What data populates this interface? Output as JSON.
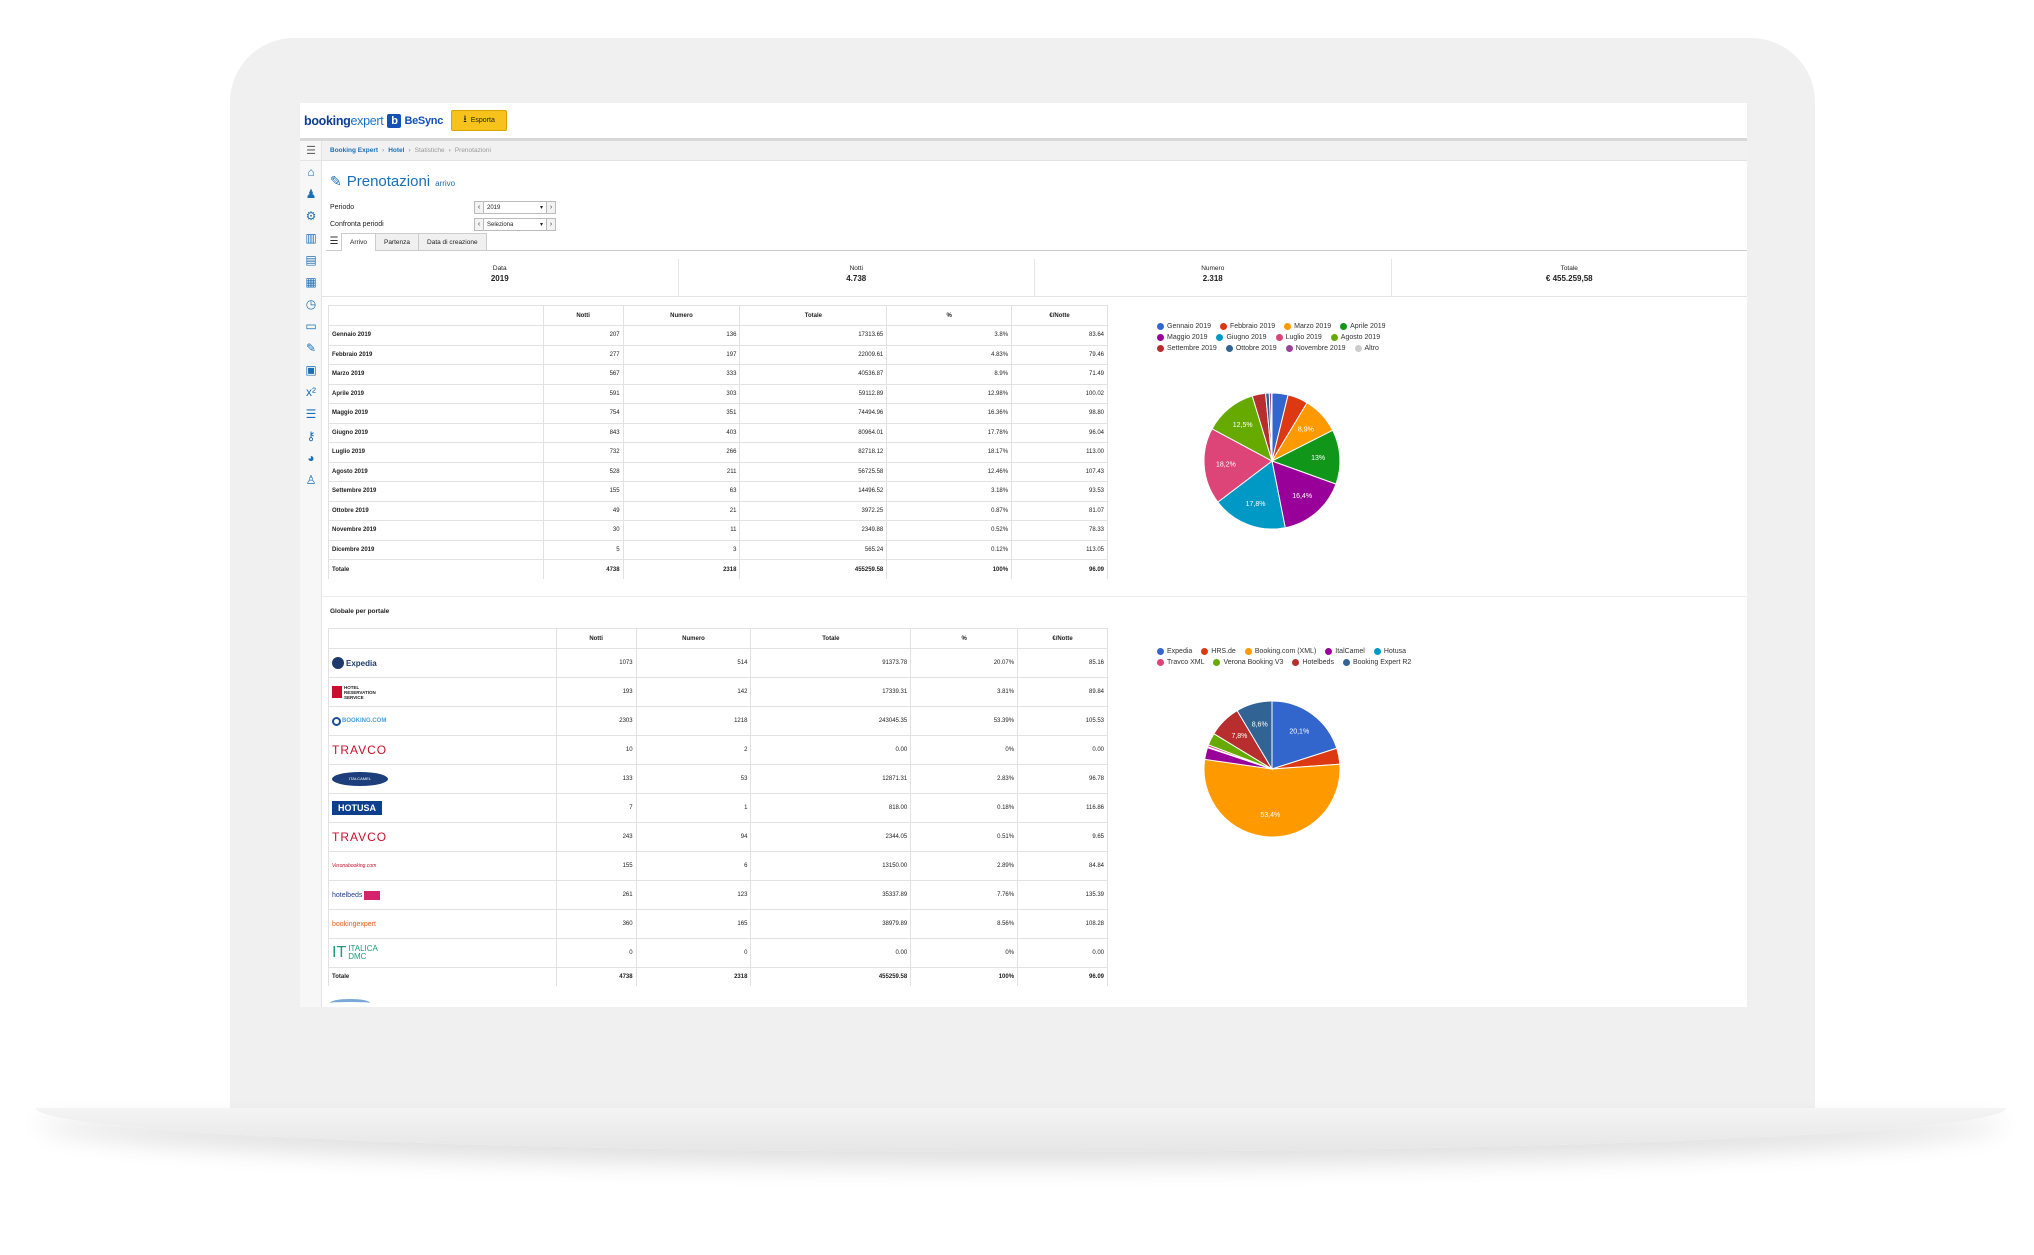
{
  "header": {
    "logo_part1": "booking",
    "logo_part2": "expert",
    "logo_mark": "b",
    "logo_part3": "BeSync",
    "export_label": "Esporta",
    "export_icon": "download-icon"
  },
  "sidebar": {
    "toggle_icon": "hamburger-icon",
    "items": [
      {
        "icon": "home-icon",
        "glyph": "⌂"
      },
      {
        "icon": "user-icon",
        "glyph": "♟"
      },
      {
        "icon": "settings-icon",
        "glyph": "⚙"
      },
      {
        "icon": "chart-icon",
        "glyph": "▥"
      },
      {
        "icon": "list-icon",
        "glyph": "▤"
      },
      {
        "icon": "building-icon",
        "glyph": "▦"
      },
      {
        "icon": "clock-icon",
        "glyph": "◷"
      },
      {
        "icon": "monitor-icon",
        "glyph": "▭"
      },
      {
        "icon": "wrench-icon",
        "glyph": "✎"
      },
      {
        "icon": "calculator-icon",
        "glyph": "▣"
      },
      {
        "icon": "superscript-icon",
        "glyph": "x²"
      },
      {
        "icon": "checklist-icon",
        "glyph": "☰"
      },
      {
        "icon": "key-icon",
        "glyph": "⚷"
      },
      {
        "icon": "pie-chart-icon",
        "glyph": "◕"
      },
      {
        "icon": "sitemap-icon",
        "glyph": "♙"
      }
    ]
  },
  "breadcrumb": {
    "items": [
      "Booking Expert",
      "Hotel",
      "Statistiche",
      "Prenotazioni"
    ]
  },
  "page": {
    "title": "Prenotazioni",
    "subtitle": "arrivo",
    "title_icon": "pencil-icon"
  },
  "filters": {
    "period_label": "Periodo",
    "period_value": "2019",
    "compare_label": "Confronta periodi",
    "compare_value": "Seleziona",
    "prev_glyph": "‹",
    "next_glyph": "›",
    "caret_glyph": "▾"
  },
  "tabs": {
    "menu_icon": "hamburger-icon",
    "items": [
      "Arrivo",
      "Partenza",
      "Data di creazione"
    ]
  },
  "summary": [
    {
      "label": "Data",
      "value": "2019"
    },
    {
      "label": "Notti",
      "value": "4.738"
    },
    {
      "label": "Numero",
      "value": "2.318"
    },
    {
      "label": "Totale",
      "value": "€ 455.259,58"
    }
  ],
  "monthly_table": {
    "columns": [
      "",
      "Notti",
      "Numero",
      "Totale",
      "%",
      "€/Notte"
    ],
    "rows": [
      [
        "Gennaio 2019",
        "207",
        "136",
        "17313.65",
        "3.8%",
        "83.64"
      ],
      [
        "Febbraio 2019",
        "277",
        "197",
        "22009.61",
        "4.83%",
        "79.46"
      ],
      [
        "Marzo 2019",
        "567",
        "333",
        "40536.87",
        "8.9%",
        "71.49"
      ],
      [
        "Aprile 2019",
        "591",
        "303",
        "59112.89",
        "12.98%",
        "100.02"
      ],
      [
        "Maggio 2019",
        "754",
        "351",
        "74494.96",
        "16.36%",
        "98.80"
      ],
      [
        "Giugno 2019",
        "843",
        "403",
        "80964.01",
        "17.78%",
        "96.04"
      ],
      [
        "Luglio 2019",
        "732",
        "266",
        "82718.12",
        "18.17%",
        "113.00"
      ],
      [
        "Agosto 2019",
        "528",
        "211",
        "56725.58",
        "12.46%",
        "107.43"
      ],
      [
        "Settembre 2019",
        "155",
        "63",
        "14496.52",
        "3.18%",
        "93.53"
      ],
      [
        "Ottobre 2019",
        "49",
        "21",
        "3972.25",
        "0.87%",
        "81.07"
      ],
      [
        "Novembre 2019",
        "30",
        "11",
        "2349.88",
        "0.52%",
        "78.33"
      ],
      [
        "Dicembre 2019",
        "5",
        "3",
        "565.24",
        "0.12%",
        "113.05"
      ],
      [
        "Totale",
        "4738",
        "2318",
        "455259.58",
        "100%",
        "96.09"
      ]
    ]
  },
  "portal_section_label": "Globale per portale",
  "portal_table": {
    "columns": [
      "",
      "Notti",
      "Numero",
      "Totale",
      "%",
      "€/Notte"
    ],
    "rows": [
      {
        "logo": "expedia",
        "logo_text": "Expedia",
        "cells": [
          "1073",
          "514",
          "91373.78",
          "20.07%",
          "85.16"
        ]
      },
      {
        "logo": "hrs",
        "logo_text": "HOTEL RESERVATION SERVICE",
        "cells": [
          "193",
          "142",
          "17339.31",
          "3.81%",
          "89.84"
        ]
      },
      {
        "logo": "booking",
        "logo_text": "BOOKING.COM",
        "cells": [
          "2303",
          "1218",
          "243045.35",
          "53.39%",
          "105.53"
        ]
      },
      {
        "logo": "travco",
        "logo_text": "TRAVCO",
        "cells": [
          "10",
          "2",
          "0.00",
          "0%",
          "0.00"
        ]
      },
      {
        "logo": "italcamel",
        "logo_text": "ITALCAMEL",
        "cells": [
          "133",
          "53",
          "12871.31",
          "2.83%",
          "96.78"
        ]
      },
      {
        "logo": "hotusa",
        "logo_text": "HOTUSA",
        "cells": [
          "7",
          "1",
          "818.00",
          "0.18%",
          "116.86"
        ]
      },
      {
        "logo": "travco",
        "logo_text": "TRAVCO",
        "cells": [
          "243",
          "94",
          "2344.05",
          "0.51%",
          "9.65"
        ]
      },
      {
        "logo": "verona",
        "logo_text": "Veronabooking.com",
        "cells": [
          "155",
          "6",
          "13150.00",
          "2.89%",
          "84.84"
        ]
      },
      {
        "logo": "hotelbeds",
        "logo_text": "hotelbeds",
        "cells": [
          "261",
          "123",
          "35337.89",
          "7.76%",
          "135.39"
        ]
      },
      {
        "logo": "bexpert",
        "logo_text": "bookingexpert",
        "cells": [
          "360",
          "165",
          "38979.89",
          "8.56%",
          "108.28"
        ]
      },
      {
        "logo": "italica",
        "logo_text": "ITALICA DMC",
        "cells": [
          "0",
          "0",
          "0.00",
          "0%",
          "0.00"
        ]
      }
    ],
    "total": [
      "Totale",
      "4738",
      "2318",
      "455259.58",
      "100%",
      "96.09"
    ]
  },
  "chart_data": [
    {
      "type": "pie",
      "legend_position": "top",
      "slices": [
        {
          "name": "Gennaio 2019",
          "value": 3.8,
          "color": "#3366cc"
        },
        {
          "name": "Febbraio 2019",
          "value": 4.83,
          "color": "#dc3912"
        },
        {
          "name": "Marzo 2019",
          "value": 8.9,
          "color": "#ff9900",
          "label": "8,9%"
        },
        {
          "name": "Aprile 2019",
          "value": 12.98,
          "color": "#109618",
          "label": "13%"
        },
        {
          "name": "Maggio 2019",
          "value": 16.36,
          "color": "#990099",
          "label": "16,4%"
        },
        {
          "name": "Giugno 2019",
          "value": 17.78,
          "color": "#0099c6",
          "label": "17,8%"
        },
        {
          "name": "Luglio 2019",
          "value": 18.17,
          "color": "#dd4477",
          "label": "18,2%"
        },
        {
          "name": "Agosto 2019",
          "value": 12.46,
          "color": "#66aa00",
          "label": "12,5%"
        },
        {
          "name": "Settembre 2019",
          "value": 3.18,
          "color": "#b82e2e"
        },
        {
          "name": "Ottobre 2019",
          "value": 0.87,
          "color": "#316395"
        },
        {
          "name": "Novembre 2019",
          "value": 0.52,
          "color": "#994499"
        },
        {
          "name": "Altro",
          "value": 0.12,
          "color": "#cccccc"
        }
      ]
    },
    {
      "type": "pie",
      "legend_position": "top",
      "slices": [
        {
          "name": "Expedia",
          "value": 20.07,
          "color": "#3366cc",
          "label": "20,1%"
        },
        {
          "name": "HRS.de",
          "value": 3.81,
          "color": "#dc3912"
        },
        {
          "name": "Booking.com (XML)",
          "value": 53.39,
          "color": "#ff9900",
          "label": "53,4%"
        },
        {
          "name": "ItalCamel",
          "value": 2.83,
          "color": "#990099"
        },
        {
          "name": "Hotusa",
          "value": 0.18,
          "color": "#0099c6"
        },
        {
          "name": "Travco XML",
          "value": 0.51,
          "color": "#dd4477"
        },
        {
          "name": "Verona Booking V3",
          "value": 2.89,
          "color": "#66aa00"
        },
        {
          "name": "Hotelbeds",
          "value": 7.76,
          "color": "#b82e2e",
          "label": "7,8%"
        },
        {
          "name": "Booking Expert R2",
          "value": 8.56,
          "color": "#316395",
          "label": "8,6%"
        }
      ]
    }
  ]
}
